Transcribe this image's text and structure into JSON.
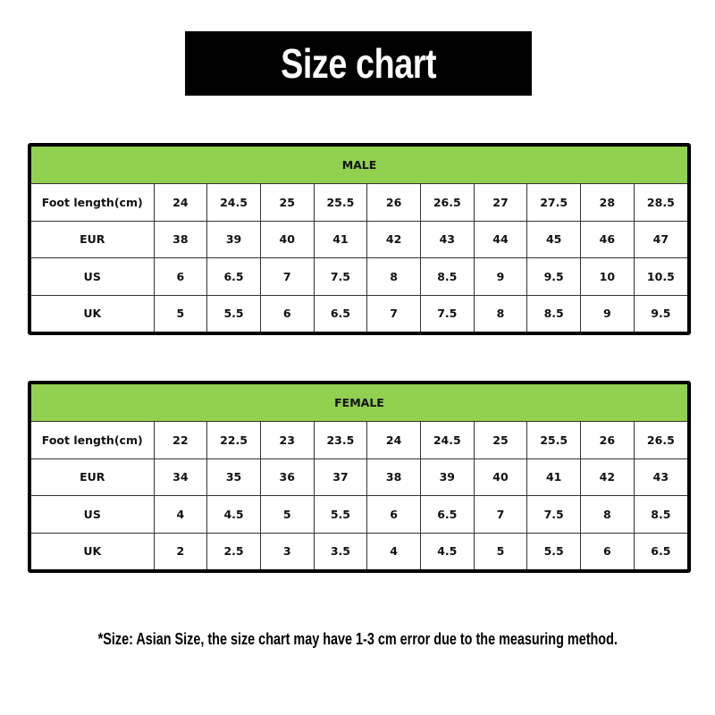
{
  "title": "Size chart",
  "colors": {
    "header_green": "#92d050",
    "title_bg": "#000000"
  },
  "tables": [
    {
      "heading": "MALE",
      "rows": [
        {
          "label": "Foot length(cm)",
          "values": [
            "24",
            "24.5",
            "25",
            "25.5",
            "26",
            "26.5",
            "27",
            "27.5",
            "28",
            "28.5"
          ]
        },
        {
          "label": "EUR",
          "values": [
            "38",
            "39",
            "40",
            "41",
            "42",
            "43",
            "44",
            "45",
            "46",
            "47"
          ]
        },
        {
          "label": "US",
          "values": [
            "6",
            "6.5",
            "7",
            "7.5",
            "8",
            "8.5",
            "9",
            "9.5",
            "10",
            "10.5"
          ]
        },
        {
          "label": "UK",
          "values": [
            "5",
            "5.5",
            "6",
            "6.5",
            "7",
            "7.5",
            "8",
            "8.5",
            "9",
            "9.5"
          ]
        }
      ]
    },
    {
      "heading": "FEMALE",
      "rows": [
        {
          "label": "Foot length(cm)",
          "values": [
            "22",
            "22.5",
            "23",
            "23.5",
            "24",
            "24.5",
            "25",
            "25.5",
            "26",
            "26.5"
          ]
        },
        {
          "label": "EUR",
          "values": [
            "34",
            "35",
            "36",
            "37",
            "38",
            "39",
            "40",
            "41",
            "42",
            "43"
          ]
        },
        {
          "label": "US",
          "values": [
            "4",
            "4.5",
            "5",
            "5.5",
            "6",
            "6.5",
            "7",
            "7.5",
            "8",
            "8.5"
          ]
        },
        {
          "label": "UK",
          "values": [
            "2",
            "2.5",
            "3",
            "3.5",
            "4",
            "4.5",
            "5",
            "5.5",
            "6",
            "6.5"
          ]
        }
      ]
    }
  ],
  "note": "*Size: Asian Size, the size chart may have 1-3 cm error due to the measuring method."
}
